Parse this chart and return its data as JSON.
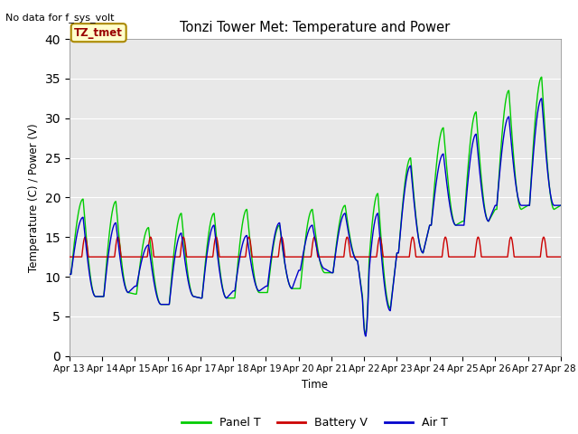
{
  "title": "Tonzi Tower Met: Temperature and Power",
  "no_data_text": "No data for f_sys_volt",
  "annotation_text": "TZ_tmet",
  "ylabel": "Temperature (C) / Power (V)",
  "xlabel": "Time",
  "xlim": [
    0,
    15
  ],
  "ylim": [
    0,
    40
  ],
  "yticks": [
    0,
    5,
    10,
    15,
    20,
    25,
    30,
    35,
    40
  ],
  "xtick_labels": [
    "Apr 13",
    "Apr 14",
    "Apr 15",
    "Apr 16",
    "Apr 17",
    "Apr 18",
    "Apr 19",
    "Apr 20",
    "Apr 21",
    "Apr 22",
    "Apr 23",
    "Apr 24",
    "Apr 25",
    "Apr 26",
    "Apr 27",
    "Apr 28"
  ],
  "panel_color": "#00cc00",
  "battery_color": "#cc0000",
  "air_color": "#0000cc",
  "bg_color": "#e8e8e8",
  "legend_labels": [
    "Panel T",
    "Battery V",
    "Air T"
  ],
  "panel_peaks": [
    19.8,
    19.5,
    16.2,
    18.0,
    18.0,
    18.5,
    16.5,
    18.5,
    19.0,
    20.5,
    25.0,
    28.8,
    30.8,
    33.5,
    35.2,
    32.5
  ],
  "panel_troughs": [
    7.5,
    8.0,
    6.5,
    7.5,
    7.3,
    8.0,
    8.5,
    11.0,
    12.0,
    6.0,
    13.0,
    16.5,
    17.0,
    18.5,
    19.0,
    22.0
  ],
  "air_peaks": [
    17.5,
    16.8,
    14.0,
    15.5,
    16.5,
    15.2,
    16.8,
    16.5,
    18.0,
    18.0,
    24.0,
    25.5,
    28.0,
    30.2,
    32.5,
    32.5
  ],
  "air_troughs": [
    7.2,
    8.0,
    6.5,
    7.5,
    7.3,
    8.2,
    8.5,
    11.0,
    10.5,
    5.5,
    13.0,
    16.5,
    17.0,
    19.0,
    19.0,
    22.0
  ],
  "battery_base": 12.5,
  "battery_peak": 15.0
}
